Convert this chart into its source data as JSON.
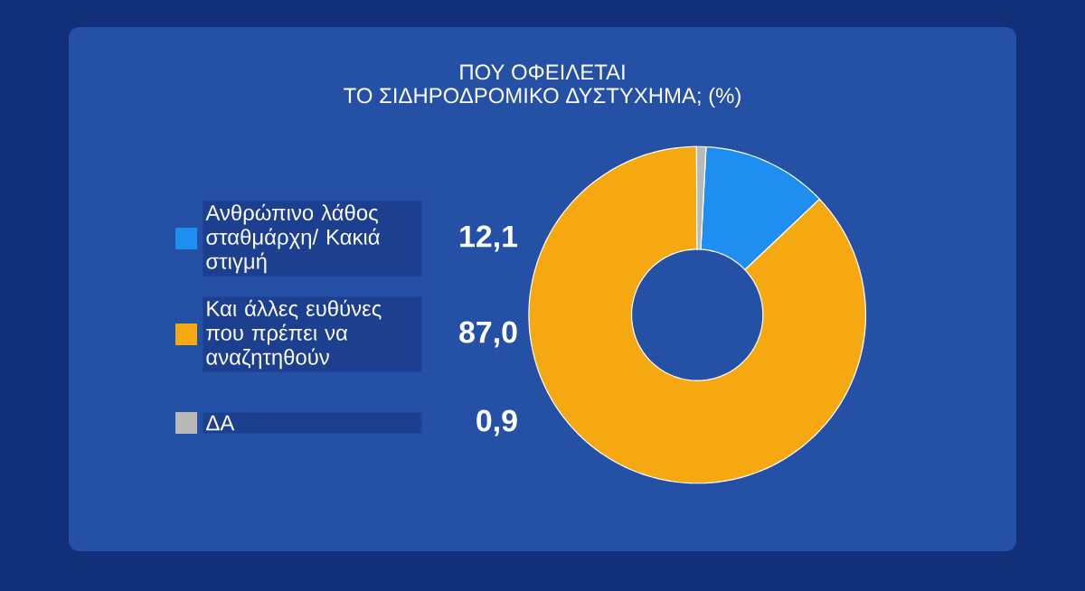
{
  "chart_data": {
    "type": "donut",
    "title": "ΠΟΥ ΟΦΕΙΛΕΤΑΙ",
    "subtitle": "ΤΟ ΣΙΔΗΡΟΔΡΟΜΙΚΟ ΔΥΣΤΥΧΗΜΑ; (%)",
    "categories": [
      "Ανθρώπινο λάθος σταθμάρχη/ Κακιά στιγμή",
      "Και άλλες ευθύνες που πρέπει να αναζητηθούν",
      "ΔΑ"
    ],
    "values": [
      12.1,
      87.0,
      0.9
    ],
    "value_labels": [
      "12,1",
      "87,0",
      "0,9"
    ],
    "colors": [
      "#1e8ef0",
      "#f5a80f",
      "#b9b9b9"
    ],
    "legend": "left"
  }
}
